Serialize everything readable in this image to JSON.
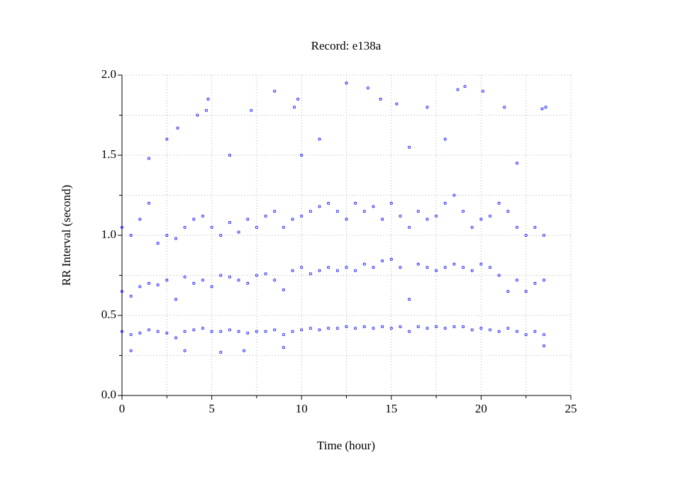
{
  "chart_data": {
    "type": "scatter",
    "title": "Record:  e138a",
    "x_label": "Time (hour)",
    "y_label": "RR Interval (second)",
    "color": "#0000ff",
    "grid": true,
    "xlim": [
      0,
      25
    ],
    "ylim": [
      0,
      2
    ],
    "xticks": [
      0,
      5,
      10,
      15,
      20,
      25
    ],
    "yticks": [
      {
        "value": 0,
        "label": "0.0"
      },
      {
        "value": 0.5,
        "label": "0.5"
      },
      {
        "value": 1,
        "label": "1.0"
      },
      {
        "value": 1.5,
        "label": "1.5"
      },
      {
        "value": 2,
        "label": "2.0"
      }
    ],
    "x_minor_ticks": [
      2.5,
      7.5,
      12.5,
      17.5,
      22.5
    ],
    "y_minor_ticks": [
      0.25,
      0.75,
      1.25,
      1.75
    ],
    "series": [
      {
        "name": "RR",
        "color": "#0000ff",
        "x": [
          0,
          0,
          0,
          0.5,
          0.5,
          0.5,
          1,
          1,
          1,
          1.5,
          1.5,
          1.5,
          2,
          2,
          2,
          2.5,
          2.5,
          2.5,
          3,
          3,
          3,
          3.5,
          3.5,
          3.5,
          4,
          4,
          4,
          4.5,
          4.5,
          4.5,
          5,
          5,
          5,
          5.5,
          5.5,
          5.5,
          6,
          6,
          6,
          6.5,
          6.5,
          6.5,
          7,
          7,
          7,
          7.5,
          7.5,
          7.5,
          8,
          8,
          8,
          8.5,
          8.5,
          8.5,
          9,
          9,
          9,
          9.5,
          9.5,
          9.5,
          10,
          10,
          10,
          10.5,
          10.5,
          10.5,
          11,
          11,
          11,
          11.5,
          11.5,
          11.5,
          12,
          12,
          12,
          12.5,
          12.5,
          12.5,
          13,
          13,
          13,
          13.5,
          13.5,
          13.5,
          14,
          14,
          14,
          14.5,
          14.5,
          14.5,
          15,
          15,
          15,
          15.5,
          15.5,
          15.5,
          16,
          16,
          16,
          16.5,
          16.5,
          16.5,
          17,
          17,
          17,
          17.5,
          17.5,
          17.5,
          18,
          18,
          18,
          18.5,
          18.5,
          18.5,
          19,
          19,
          19,
          19.5,
          19.5,
          19.5,
          20,
          20,
          20,
          20.5,
          20.5,
          20.5,
          21,
          21,
          21,
          21.5,
          21.5,
          21.5,
          22,
          22,
          22,
          22.5,
          22.5,
          22.5,
          23,
          23,
          23,
          23.5,
          23.5,
          23.5,
          2.5,
          3.1,
          4.2,
          4.8,
          4.7,
          7.2,
          8.5,
          9.8,
          9.6,
          12.5,
          13.7,
          14.4,
          15.3,
          17,
          18.7,
          19.1,
          20.1,
          21.3,
          23.4,
          23.6,
          1.5,
          6,
          11,
          16,
          22,
          3.5,
          5.5,
          6.8,
          9,
          23.5,
          0.5,
          10,
          18
        ],
        "values": [
          0.4,
          0.65,
          1.05,
          0.38,
          0.62,
          1.0,
          0.39,
          0.68,
          1.1,
          0.41,
          0.7,
          1.2,
          0.4,
          0.69,
          0.95,
          0.39,
          0.72,
          1.0,
          0.36,
          0.6,
          0.98,
          0.4,
          0.74,
          1.05,
          0.41,
          0.7,
          1.1,
          0.42,
          0.72,
          1.12,
          0.4,
          0.68,
          1.05,
          0.4,
          0.75,
          1.0,
          0.41,
          0.74,
          1.08,
          0.4,
          0.72,
          1.02,
          0.39,
          0.7,
          1.1,
          0.4,
          0.75,
          1.05,
          0.4,
          0.76,
          1.12,
          0.41,
          0.72,
          1.15,
          0.38,
          0.66,
          1.05,
          0.4,
          0.78,
          1.1,
          0.41,
          0.8,
          1.12,
          0.42,
          0.76,
          1.15,
          0.41,
          0.78,
          1.18,
          0.42,
          0.8,
          1.2,
          0.42,
          0.78,
          1.15,
          0.43,
          0.8,
          1.1,
          0.42,
          0.78,
          1.2,
          0.43,
          0.82,
          1.15,
          0.42,
          0.8,
          1.18,
          0.43,
          0.84,
          1.1,
          0.42,
          0.85,
          1.2,
          0.43,
          0.8,
          1.12,
          0.4,
          0.6,
          1.05,
          0.43,
          0.82,
          1.15,
          0.42,
          0.8,
          1.1,
          0.43,
          0.78,
          1.12,
          0.42,
          0.8,
          1.2,
          0.43,
          0.82,
          1.25,
          0.43,
          0.8,
          1.15,
          0.41,
          0.78,
          1.05,
          0.42,
          0.82,
          1.1,
          0.41,
          0.8,
          1.12,
          0.4,
          0.75,
          1.2,
          0.42,
          0.65,
          1.15,
          0.4,
          0.72,
          1.05,
          0.38,
          0.65,
          1.0,
          0.4,
          0.7,
          1.05,
          0.38,
          0.72,
          1.0,
          1.6,
          1.67,
          1.75,
          1.85,
          1.78,
          1.78,
          1.9,
          1.85,
          1.8,
          1.95,
          1.92,
          1.85,
          1.82,
          1.8,
          1.91,
          1.93,
          1.9,
          1.8,
          1.79,
          1.8,
          1.48,
          1.5,
          1.6,
          1.55,
          1.45,
          0.28,
          0.27,
          0.28,
          0.3,
          0.31,
          0.28,
          1.5,
          1.6
        ]
      }
    ]
  }
}
